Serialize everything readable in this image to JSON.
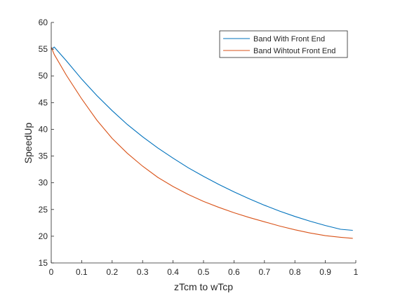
{
  "chart_data": {
    "type": "line",
    "xlabel": "zTcm to wTcp",
    "ylabel": "SpeedUp",
    "xlim": [
      0,
      1
    ],
    "ylim": [
      15,
      60
    ],
    "xticks": [
      0,
      0.1,
      0.2,
      0.3,
      0.4,
      0.5,
      0.6,
      0.7,
      0.8,
      0.9,
      1
    ],
    "xtick_labels": [
      "0",
      "0.1",
      "0.2",
      "0.3",
      "0.4",
      "0.5",
      "0.6",
      "0.7",
      "0.8",
      "0.9",
      "1"
    ],
    "yticks": [
      15,
      20,
      25,
      30,
      35,
      40,
      45,
      50,
      55,
      60
    ],
    "ytick_labels": [
      "15",
      "20",
      "25",
      "30",
      "35",
      "40",
      "45",
      "50",
      "55",
      "60"
    ],
    "grid": false,
    "legend_position": "top-right",
    "x": [
      0,
      0.01,
      0.05,
      0.1,
      0.15,
      0.2,
      0.25,
      0.3,
      0.35,
      0.4,
      0.45,
      0.5,
      0.55,
      0.6,
      0.65,
      0.7,
      0.75,
      0.8,
      0.85,
      0.9,
      0.95,
      0.99
    ],
    "series": [
      {
        "name": "Band With Front End",
        "color": "#0072BD",
        "values": [
          55.0,
          55.4,
          52.8,
          49.4,
          46.3,
          43.5,
          40.9,
          38.6,
          36.5,
          34.6,
          32.8,
          31.2,
          29.7,
          28.3,
          27.0,
          25.8,
          24.7,
          23.7,
          22.8,
          22.0,
          21.3,
          21.1
        ]
      },
      {
        "name": "Band Wihtout Front End",
        "color": "#D95319",
        "values": [
          55.4,
          54.0,
          50.1,
          45.7,
          41.7,
          38.3,
          35.5,
          33.1,
          31.0,
          29.3,
          27.8,
          26.5,
          25.4,
          24.4,
          23.5,
          22.7,
          21.9,
          21.2,
          20.6,
          20.1,
          19.8,
          19.6
        ]
      }
    ]
  }
}
